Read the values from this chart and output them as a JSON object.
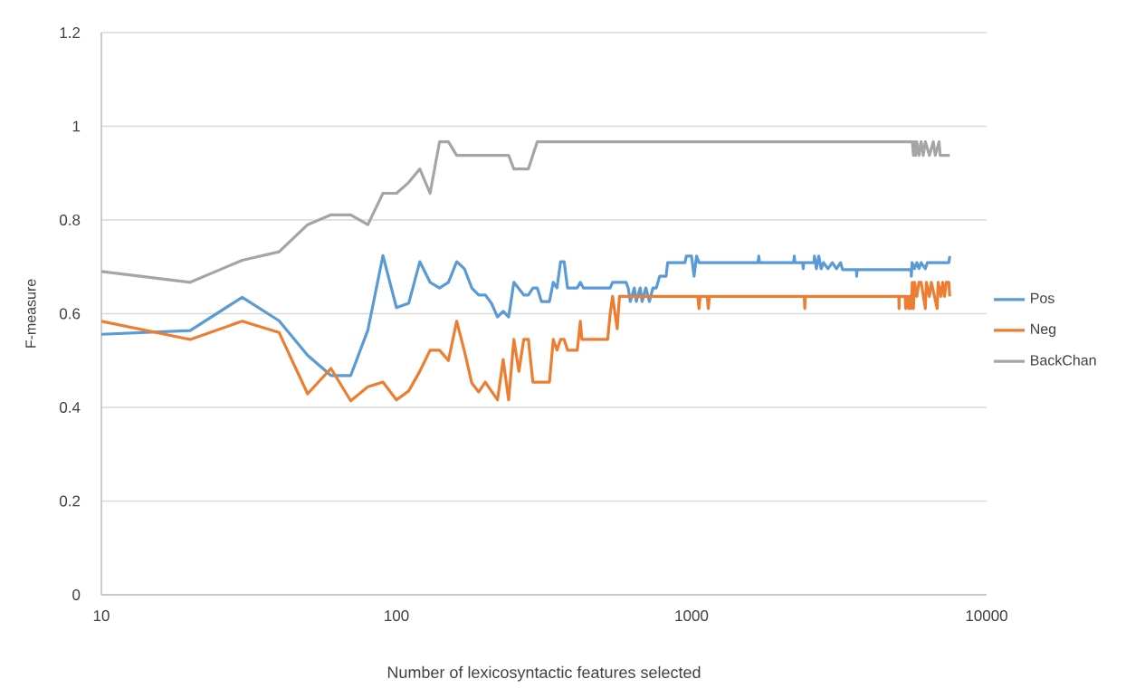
{
  "chart_data": {
    "type": "line",
    "xlabel": "Number of lexicosyntactic features selected",
    "ylabel": "F-measure",
    "log": "x",
    "grid": "y",
    "legend": "right",
    "xlim": [
      10,
      10000
    ],
    "xticks": [
      10,
      100,
      1000,
      10000
    ],
    "ylim": [
      0,
      1.2
    ],
    "yticks": [
      0,
      0.2,
      0.4,
      0.6,
      0.8,
      1,
      1.2
    ],
    "series": [
      {
        "name": "Pos",
        "color": "#5b9bd5",
        "x": [
          10,
          20,
          30,
          40,
          50,
          60,
          70,
          80,
          90,
          100,
          110,
          120,
          130,
          140,
          150,
          160,
          170,
          180,
          190,
          200,
          210,
          220,
          230,
          240,
          250,
          270,
          280,
          290,
          300,
          310,
          330,
          340,
          350,
          360,
          370,
          380,
          410,
          420,
          430,
          530,
          540,
          600,
          610,
          620,
          640,
          650,
          670,
          680,
          700,
          720,
          740,
          760,
          780,
          820,
          830,
          950,
          960,
          1000,
          1020,
          1040,
          1060,
          1680,
          1690,
          1700,
          2220,
          2230,
          2240,
          2380,
          2390,
          2400,
          2600,
          2610,
          2650,
          2700,
          2750,
          2800,
          2900,
          3000,
          3100,
          3200,
          3250,
          3620,
          3630,
          3640,
          5550,
          5560,
          5590,
          5700,
          5800,
          5900,
          6000,
          6200,
          6300,
          7450,
          7500
        ],
        "values": [
          0.556,
          0.564,
          0.635,
          0.585,
          0.511,
          0.468,
          0.468,
          0.565,
          0.724,
          0.613,
          0.622,
          0.711,
          0.667,
          0.655,
          0.667,
          0.711,
          0.696,
          0.655,
          0.64,
          0.64,
          0.622,
          0.593,
          0.605,
          0.593,
          0.667,
          0.64,
          0.64,
          0.655,
          0.655,
          0.626,
          0.626,
          0.667,
          0.655,
          0.711,
          0.711,
          0.655,
          0.655,
          0.667,
          0.655,
          0.655,
          0.667,
          0.667,
          0.655,
          0.626,
          0.655,
          0.626,
          0.655,
          0.626,
          0.655,
          0.626,
          0.655,
          0.655,
          0.68,
          0.68,
          0.709,
          0.709,
          0.723,
          0.723,
          0.68,
          0.723,
          0.709,
          0.709,
          0.723,
          0.709,
          0.709,
          0.723,
          0.709,
          0.709,
          0.696,
          0.709,
          0.709,
          0.723,
          0.696,
          0.723,
          0.696,
          0.709,
          0.696,
          0.709,
          0.696,
          0.709,
          0.694,
          0.694,
          0.68,
          0.694,
          0.694,
          0.68,
          0.709,
          0.696,
          0.709,
          0.696,
          0.709,
          0.696,
          0.709,
          0.709,
          0.723
        ]
      },
      {
        "name": "Neg",
        "color": "#ed7d31",
        "x": [
          10,
          20,
          30,
          40,
          50,
          60,
          70,
          80,
          90,
          100,
          110,
          120,
          130,
          140,
          150,
          160,
          170,
          180,
          190,
          200,
          220,
          230,
          240,
          250,
          260,
          270,
          280,
          290,
          330,
          340,
          350,
          360,
          370,
          380,
          410,
          420,
          425,
          520,
          530,
          540,
          560,
          570,
          1050,
          1060,
          1070,
          1130,
          1140,
          1150,
          2410,
          2420,
          2430,
          5040,
          5050,
          5060,
          5300,
          5320,
          5400,
          5450,
          5500,
          5550,
          5600,
          5650,
          5700,
          5800,
          5900,
          6000,
          6200,
          6250,
          6400,
          6500,
          6800,
          6850,
          7000,
          7100,
          7200,
          7300,
          7450,
          7500
        ],
        "values": [
          0.584,
          0.545,
          0.584,
          0.56,
          0.429,
          0.483,
          0.414,
          0.444,
          0.454,
          0.416,
          0.435,
          0.477,
          0.522,
          0.522,
          0.5,
          0.584,
          0.52,
          0.452,
          0.433,
          0.454,
          0.416,
          0.502,
          0.416,
          0.545,
          0.477,
          0.545,
          0.545,
          0.454,
          0.454,
          0.545,
          0.522,
          0.545,
          0.545,
          0.522,
          0.522,
          0.584,
          0.545,
          0.545,
          0.6,
          0.637,
          0.568,
          0.637,
          0.637,
          0.611,
          0.637,
          0.637,
          0.611,
          0.637,
          0.637,
          0.611,
          0.637,
          0.637,
          0.611,
          0.637,
          0.637,
          0.611,
          0.637,
          0.611,
          0.637,
          0.611,
          0.667,
          0.611,
          0.667,
          0.637,
          0.667,
          0.667,
          0.611,
          0.667,
          0.637,
          0.667,
          0.611,
          0.667,
          0.637,
          0.667,
          0.637,
          0.667,
          0.667,
          0.637
        ]
      },
      {
        "name": "BackChan",
        "color": "#a5a5a5",
        "x": [
          10,
          20,
          30,
          40,
          50,
          60,
          70,
          80,
          90,
          100,
          110,
          120,
          130,
          140,
          150,
          160,
          240,
          250,
          280,
          300,
          5600,
          5650,
          5700,
          5750,
          5800,
          5900,
          6000,
          6100,
          6200,
          6400,
          6600,
          6700,
          6900,
          6960,
          7500
        ],
        "values": [
          0.69,
          0.667,
          0.714,
          0.732,
          0.79,
          0.811,
          0.811,
          0.79,
          0.857,
          0.857,
          0.88,
          0.909,
          0.857,
          0.967,
          0.967,
          0.938,
          0.938,
          0.909,
          0.909,
          0.967,
          0.967,
          0.938,
          0.967,
          0.938,
          0.967,
          0.938,
          0.967,
          0.938,
          0.967,
          0.938,
          0.967,
          0.938,
          0.967,
          0.938,
          0.938
        ]
      }
    ]
  }
}
